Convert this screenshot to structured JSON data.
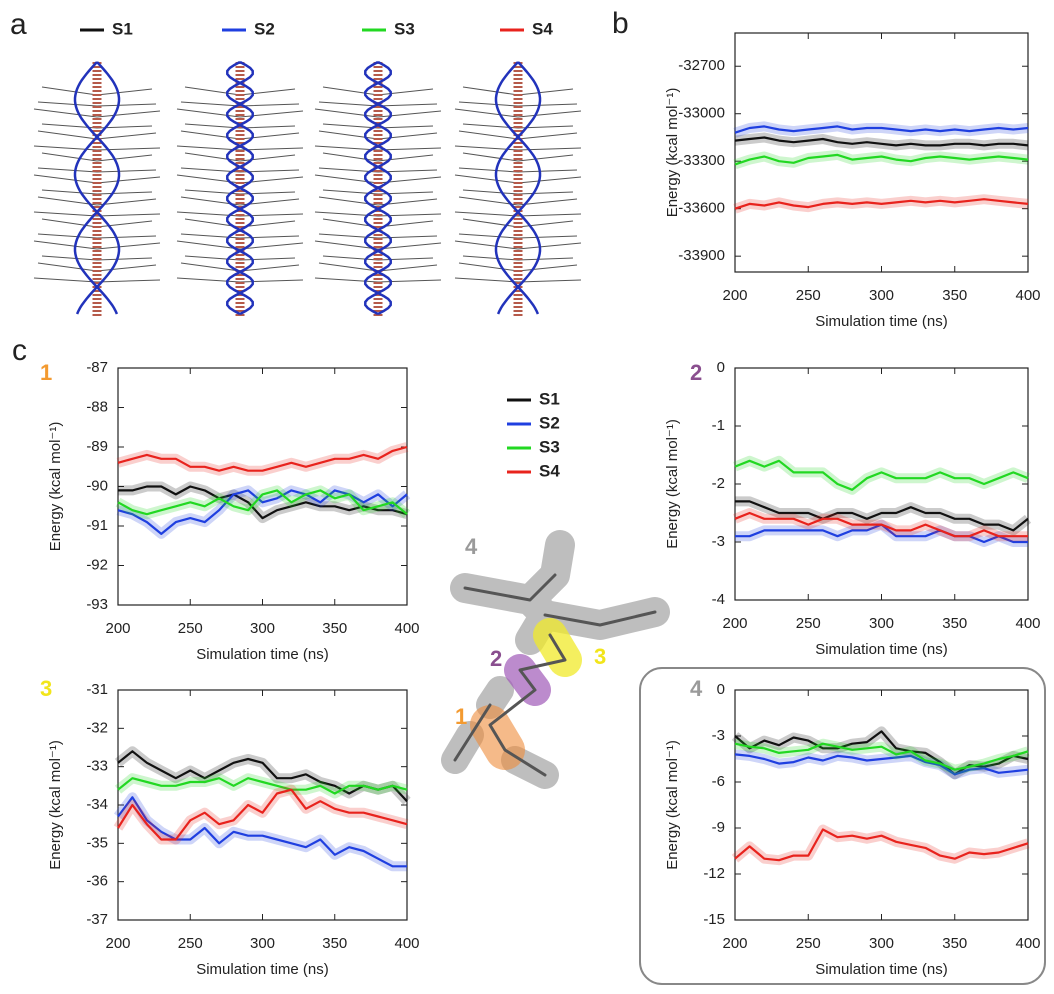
{
  "panel_labels": [
    "a",
    "c"
  ],
  "molecule_labels": [
    "4",
    "2",
    "3",
    "1"
  ],
  "chart_data": [
    {
      "type": "line",
      "label": "b",
      "label_color": "#222222",
      "ylabel": "Energy (kcal mol⁻¹)",
      "xlabel": "Simulation time (ns)",
      "x": [
        200,
        210,
        220,
        230,
        240,
        250,
        260,
        270,
        280,
        290,
        300,
        310,
        320,
        330,
        340,
        350,
        360,
        370,
        380,
        390,
        400
      ],
      "xlim": [
        200,
        400
      ],
      "xticks": [
        200,
        250,
        300,
        350,
        400
      ],
      "ylim": [
        -34000,
        -32490
      ],
      "yticks": [
        -32700,
        -33000,
        -33300,
        -33600,
        -33900
      ],
      "series": [
        {
          "name": "S1",
          "color": "#111111",
          "values": [
            -33170,
            -33160,
            -33150,
            -33170,
            -33180,
            -33170,
            -33160,
            -33180,
            -33190,
            -33180,
            -33190,
            -33200,
            -33190,
            -33200,
            -33200,
            -33190,
            -33190,
            -33200,
            -33190,
            -33190,
            -33200
          ]
        },
        {
          "name": "S2",
          "color": "#1f3fe0",
          "values": [
            -33120,
            -33090,
            -33080,
            -33100,
            -33110,
            -33100,
            -33090,
            -33080,
            -33100,
            -33090,
            -33090,
            -33100,
            -33110,
            -33100,
            -33110,
            -33100,
            -33110,
            -33100,
            -33090,
            -33100,
            -33090
          ]
        },
        {
          "name": "S3",
          "color": "#22d822",
          "values": [
            -33320,
            -33290,
            -33270,
            -33300,
            -33310,
            -33280,
            -33270,
            -33260,
            -33290,
            -33280,
            -33270,
            -33290,
            -33300,
            -33280,
            -33270,
            -33280,
            -33290,
            -33280,
            -33270,
            -33280,
            -33290
          ]
        },
        {
          "name": "S4",
          "color": "#e8231d",
          "values": [
            -33600,
            -33570,
            -33580,
            -33560,
            -33580,
            -33590,
            -33570,
            -33560,
            -33570,
            -33560,
            -33570,
            -33560,
            -33550,
            -33560,
            -33550,
            -33560,
            -33550,
            -33540,
            -33550,
            -33560,
            -33570
          ]
        }
      ]
    },
    {
      "type": "line",
      "label": "1",
      "label_color": "#f39a30",
      "ylabel": "Energy (kcal mol⁻¹)",
      "xlabel": "Simulation time (ns)",
      "x": [
        200,
        210,
        220,
        230,
        240,
        250,
        260,
        270,
        280,
        290,
        300,
        310,
        320,
        330,
        340,
        350,
        360,
        370,
        380,
        390,
        400
      ],
      "xlim": [
        200,
        400
      ],
      "xticks": [
        200,
        250,
        300,
        350,
        400
      ],
      "ylim": [
        -93,
        -87
      ],
      "yticks": [
        -87,
        -88,
        -89,
        -90,
        -91,
        -92,
        -93
      ],
      "series": [
        {
          "name": "S1",
          "color": "#111111",
          "values": [
            -90.1,
            -90.1,
            -90.0,
            -90.0,
            -90.2,
            -90.0,
            -90.1,
            -90.3,
            -90.2,
            -90.4,
            -90.8,
            -90.6,
            -90.5,
            -90.4,
            -90.5,
            -90.5,
            -90.6,
            -90.5,
            -90.6,
            -90.6,
            -90.7
          ]
        },
        {
          "name": "S2",
          "color": "#1f3fe0",
          "values": [
            -90.6,
            -90.7,
            -90.9,
            -91.2,
            -90.9,
            -90.8,
            -90.9,
            -90.6,
            -90.2,
            -90.1,
            -90.4,
            -90.3,
            -90.1,
            -90.2,
            -90.4,
            -90.1,
            -90.2,
            -90.4,
            -90.2,
            -90.5,
            -90.2
          ]
        },
        {
          "name": "S3",
          "color": "#22d822",
          "values": [
            -90.4,
            -90.6,
            -90.7,
            -90.6,
            -90.5,
            -90.4,
            -90.5,
            -90.3,
            -90.5,
            -90.6,
            -90.2,
            -90.1,
            -90.4,
            -90.2,
            -90.1,
            -90.3,
            -90.2,
            -90.6,
            -90.5,
            -90.4,
            -90.7
          ]
        },
        {
          "name": "S4",
          "color": "#e8231d",
          "values": [
            -89.4,
            -89.3,
            -89.2,
            -89.3,
            -89.3,
            -89.5,
            -89.5,
            -89.6,
            -89.5,
            -89.6,
            -89.6,
            -89.5,
            -89.4,
            -89.5,
            -89.4,
            -89.3,
            -89.3,
            -89.2,
            -89.3,
            -89.1,
            -89.0
          ]
        }
      ]
    },
    {
      "type": "line",
      "label": "2",
      "label_color": "#8a4f8f",
      "ylabel": "Energy (kcal mol⁻¹)",
      "xlabel": "Simulation time (ns)",
      "x": [
        200,
        210,
        220,
        230,
        240,
        250,
        260,
        270,
        280,
        290,
        300,
        310,
        320,
        330,
        340,
        350,
        360,
        370,
        380,
        390,
        400
      ],
      "xlim": [
        200,
        400
      ],
      "xticks": [
        200,
        250,
        300,
        350,
        400
      ],
      "ylim": [
        -4,
        0
      ],
      "yticks": [
        0,
        -1,
        -2,
        -3,
        -4
      ],
      "series": [
        {
          "name": "S1",
          "color": "#111111",
          "values": [
            -2.3,
            -2.3,
            -2.4,
            -2.5,
            -2.5,
            -2.5,
            -2.6,
            -2.5,
            -2.5,
            -2.6,
            -2.5,
            -2.5,
            -2.4,
            -2.5,
            -2.5,
            -2.6,
            -2.6,
            -2.7,
            -2.7,
            -2.8,
            -2.6
          ]
        },
        {
          "name": "S2",
          "color": "#1f3fe0",
          "values": [
            -2.9,
            -2.9,
            -2.8,
            -2.8,
            -2.8,
            -2.8,
            -2.8,
            -2.9,
            -2.8,
            -2.8,
            -2.7,
            -2.9,
            -2.9,
            -2.9,
            -2.8,
            -2.9,
            -2.9,
            -3.0,
            -2.9,
            -3.0,
            -3.0
          ]
        },
        {
          "name": "S3",
          "color": "#22d822",
          "values": [
            -1.7,
            -1.6,
            -1.7,
            -1.6,
            -1.8,
            -1.8,
            -1.8,
            -2.0,
            -2.1,
            -1.9,
            -1.8,
            -1.9,
            -1.9,
            -1.9,
            -1.8,
            -1.9,
            -1.9,
            -2.0,
            -1.9,
            -1.8,
            -1.9
          ]
        },
        {
          "name": "S4",
          "color": "#e8231d",
          "values": [
            -2.6,
            -2.5,
            -2.6,
            -2.6,
            -2.6,
            -2.7,
            -2.6,
            -2.6,
            -2.7,
            -2.7,
            -2.7,
            -2.8,
            -2.8,
            -2.7,
            -2.8,
            -2.9,
            -2.9,
            -2.8,
            -2.9,
            -2.9,
            -2.9
          ]
        }
      ]
    },
    {
      "type": "line",
      "label": "3",
      "label_color": "#f2e51a",
      "ylabel": "Energy (kcal mol⁻¹)",
      "xlabel": "Simulation time (ns)",
      "x": [
        200,
        210,
        220,
        230,
        240,
        250,
        260,
        270,
        280,
        290,
        300,
        310,
        320,
        330,
        340,
        350,
        360,
        370,
        380,
        390,
        400
      ],
      "xlim": [
        200,
        400
      ],
      "xticks": [
        200,
        250,
        300,
        350,
        400
      ],
      "ylim": [
        -37,
        -31
      ],
      "yticks": [
        -31,
        -32,
        -33,
        -34,
        -35,
        -36,
        -37
      ],
      "series": [
        {
          "name": "S1",
          "color": "#111111",
          "values": [
            -32.9,
            -32.6,
            -32.9,
            -33.1,
            -33.3,
            -33.1,
            -33.3,
            -33.1,
            -32.9,
            -32.8,
            -32.9,
            -33.3,
            -33.3,
            -33.2,
            -33.4,
            -33.5,
            -33.7,
            -33.5,
            -33.6,
            -33.5,
            -33.9
          ]
        },
        {
          "name": "S2",
          "color": "#1f3fe0",
          "values": [
            -34.3,
            -33.8,
            -34.4,
            -34.7,
            -34.9,
            -34.9,
            -34.6,
            -35.0,
            -34.7,
            -34.8,
            -34.8,
            -34.9,
            -35.0,
            -35.1,
            -34.9,
            -35.3,
            -35.1,
            -35.2,
            -35.4,
            -35.6,
            -35.6
          ]
        },
        {
          "name": "S3",
          "color": "#22d822",
          "values": [
            -33.6,
            -33.3,
            -33.4,
            -33.5,
            -33.5,
            -33.4,
            -33.4,
            -33.3,
            -33.5,
            -33.3,
            -33.4,
            -33.5,
            -33.6,
            -33.6,
            -33.5,
            -33.7,
            -33.5,
            -33.5,
            -33.6,
            -33.5,
            -33.6
          ]
        },
        {
          "name": "S4",
          "color": "#e8231d",
          "values": [
            -34.6,
            -34.0,
            -34.5,
            -34.9,
            -34.9,
            -34.4,
            -34.2,
            -34.5,
            -34.4,
            -34.0,
            -34.2,
            -33.7,
            -33.6,
            -34.1,
            -33.9,
            -34.1,
            -34.2,
            -34.2,
            -34.3,
            -34.4,
            -34.5
          ]
        }
      ]
    },
    {
      "type": "line",
      "label": "4",
      "label_color": "#9a9a9a",
      "ylabel": "Energy (kcal mol⁻¹)",
      "xlabel": "Simulation time (ns)",
      "x": [
        200,
        210,
        220,
        230,
        240,
        250,
        260,
        270,
        280,
        290,
        300,
        310,
        320,
        330,
        340,
        350,
        360,
        370,
        380,
        390,
        400
      ],
      "xlim": [
        200,
        400
      ],
      "xticks": [
        200,
        250,
        300,
        350,
        400
      ],
      "ylim": [
        -15,
        0
      ],
      "yticks": [
        0,
        -3,
        -6,
        -9,
        -12,
        -15
      ],
      "series": [
        {
          "name": "S1",
          "color": "#111111",
          "values": [
            -3.0,
            -3.8,
            -3.3,
            -3.6,
            -3.1,
            -3.3,
            -3.8,
            -3.8,
            -3.5,
            -3.4,
            -2.7,
            -3.8,
            -4.0,
            -4.1,
            -4.7,
            -5.5,
            -4.9,
            -5.0,
            -4.8,
            -4.3,
            -4.5
          ]
        },
        {
          "name": "S2",
          "color": "#1f3fe0",
          "values": [
            -4.2,
            -4.3,
            -4.5,
            -4.8,
            -4.7,
            -4.4,
            -4.6,
            -4.3,
            -4.4,
            -4.6,
            -4.5,
            -4.4,
            -4.3,
            -4.7,
            -4.9,
            -5.5,
            -5.2,
            -5.1,
            -5.4,
            -5.3,
            -5.2
          ]
        },
        {
          "name": "S3",
          "color": "#22d822",
          "values": [
            -3.5,
            -3.7,
            -3.8,
            -4.1,
            -4.0,
            -3.9,
            -3.5,
            -3.7,
            -3.9,
            -3.8,
            -3.7,
            -4.2,
            -4.0,
            -4.6,
            -4.8,
            -5.2,
            -5.0,
            -4.8,
            -4.5,
            -4.3,
            -4.0
          ]
        },
        {
          "name": "S4",
          "color": "#e8231d",
          "values": [
            -11.0,
            -10.2,
            -11.0,
            -11.1,
            -10.8,
            -10.8,
            -9.1,
            -9.6,
            -9.5,
            -9.7,
            -9.5,
            -9.9,
            -10.1,
            -10.3,
            -10.8,
            -11.0,
            -10.6,
            -10.7,
            -10.6,
            -10.3,
            -10.0
          ]
        }
      ]
    }
  ]
}
